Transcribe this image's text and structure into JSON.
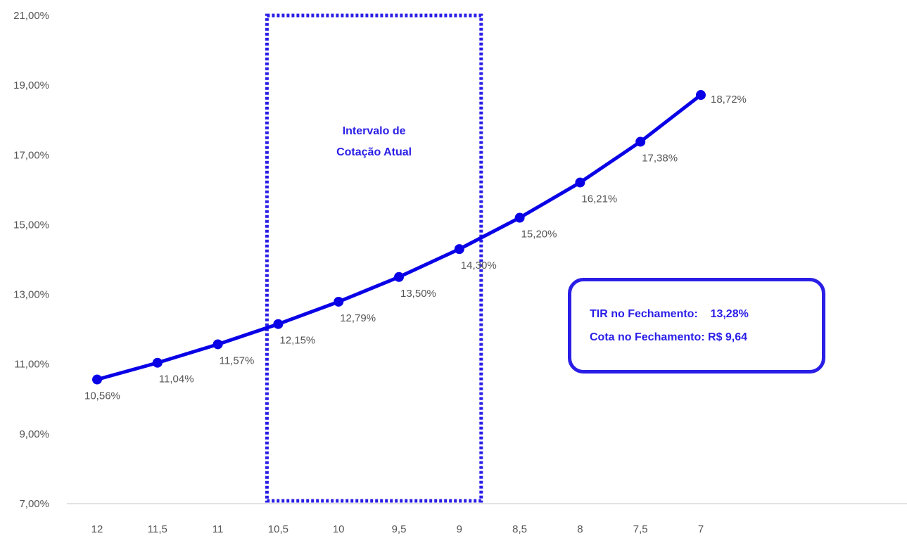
{
  "colors": {
    "series": "#0a00e6",
    "highlight": "#2a1ee6",
    "axis_text": "#555555",
    "baseline": "#d9d9d9"
  },
  "chart_data": {
    "type": "line",
    "categories": [
      "12",
      "11,5",
      "11",
      "10,5",
      "10",
      "9,5",
      "9",
      "8,5",
      "8",
      "7,5",
      "7"
    ],
    "series": [
      {
        "values": [
          10.56,
          11.04,
          11.57,
          12.15,
          12.79,
          13.5,
          14.3,
          15.2,
          16.21,
          17.38,
          18.72
        ],
        "labels": [
          "10,56%",
          "11,04%",
          "11,57%",
          "12,15%",
          "12,79%",
          "13,50%",
          "14,30%",
          "15,20%",
          "16,21%",
          "17,38%",
          "18,72%"
        ]
      }
    ],
    "ylim": [
      7,
      21
    ],
    "yticks": [
      7,
      9,
      11,
      13,
      15,
      17,
      19,
      21
    ],
    "ytick_labels": [
      "7,00%",
      "9,00%",
      "11,00%",
      "13,00%",
      "15,00%",
      "17,00%",
      "19,00%",
      "21,00%"
    ],
    "grid": false,
    "annotation_region": {
      "from_category": "10,5",
      "to_category": "9",
      "label_line1": "Intervalo de",
      "label_line2": "Cotação Atual",
      "style": "dotted"
    }
  },
  "info_box": {
    "line1": "TIR no Fechamento:    13,28%",
    "line2": "Cota no Fechamento: R$ 9,64"
  }
}
